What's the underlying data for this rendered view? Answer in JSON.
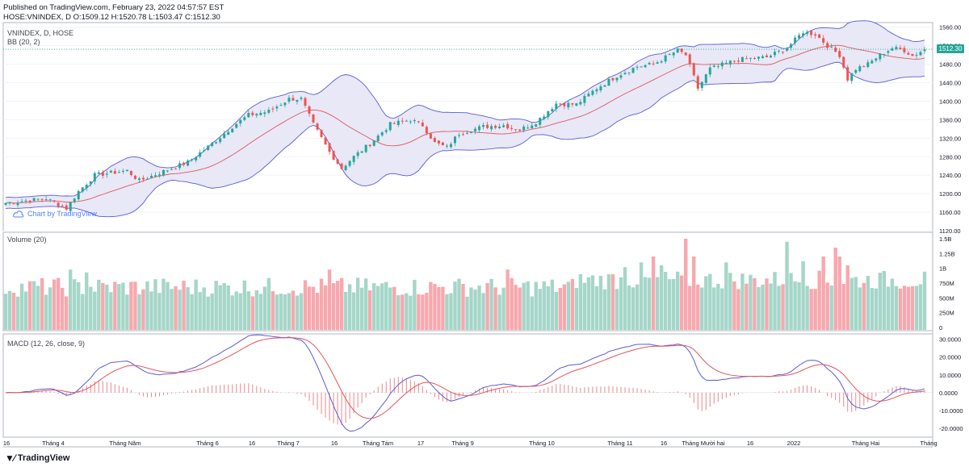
{
  "header": {
    "published": "Published on TradingView.com, February 23, 2022 04:57:57 EST",
    "ohlc": "HOSE:VNINDEX, D O:1509.12 H:1520.78 L:1503.47 C:1512.30"
  },
  "panes": {
    "price_label": "VNINDEX, D, HOSE",
    "bb_label": "BB (20, 2)",
    "volume_label": "Volume (20)",
    "macd_label": "MACD (12, 26, close, 9)",
    "last_price": "1512.30"
  },
  "watermark": "Chart by TradingView",
  "footer": {
    "brand": "TradingView"
  },
  "colors": {
    "up": "#26a69a",
    "down": "#ef5350",
    "vol_up": "#a5d6c8",
    "vol_down": "#f7a8ae",
    "band": "#5b5bd6",
    "band_fill": "#e8e8f7",
    "basis": "#e0565b",
    "macd": "#5b5bd6",
    "signal": "#e0565b"
  },
  "chart_data": [
    {
      "type": "candlestick",
      "title": "VNINDEX, D, HOSE",
      "ylim": [
        1120,
        1570
      ],
      "yticks": [
        "1560.00",
        "1520.00",
        "1480.00",
        "1440.00",
        "1400.00",
        "1360.00",
        "1320.00",
        "1280.00",
        "1240.00",
        "1200.00",
        "1160.00",
        "1120.00"
      ],
      "xticks": [
        "16",
        "Tháng 4",
        "Tháng Năm",
        "Tháng 6",
        "16",
        "Tháng 7",
        "16",
        "Tháng Tám",
        "17",
        "Tháng 9",
        "Tháng 10",
        "Tháng 11",
        "16",
        "Tháng Mười hai",
        "16",
        "2022",
        "Tháng Hai",
        "Tháng"
      ],
      "close_anchors": [
        [
          0,
          1180
        ],
        [
          10,
          1190
        ],
        [
          15,
          1168
        ],
        [
          18,
          1205
        ],
        [
          22,
          1240
        ],
        [
          30,
          1250
        ],
        [
          33,
          1228
        ],
        [
          38,
          1245
        ],
        [
          45,
          1268
        ],
        [
          52,
          1315
        ],
        [
          56,
          1345
        ],
        [
          60,
          1370
        ],
        [
          65,
          1378
        ],
        [
          70,
          1405
        ],
        [
          73,
          1405
        ],
        [
          76,
          1350
        ],
        [
          80,
          1290
        ],
        [
          83,
          1255
        ],
        [
          86,
          1280
        ],
        [
          90,
          1308
        ],
        [
          95,
          1350
        ],
        [
          100,
          1360
        ],
        [
          103,
          1348
        ],
        [
          106,
          1310
        ],
        [
          109,
          1300
        ],
        [
          112,
          1330
        ],
        [
          118,
          1345
        ],
        [
          123,
          1348
        ],
        [
          127,
          1338
        ],
        [
          131,
          1355
        ],
        [
          136,
          1395
        ],
        [
          141,
          1393
        ],
        [
          146,
          1428
        ],
        [
          151,
          1455
        ],
        [
          156,
          1475
        ],
        [
          160,
          1480
        ],
        [
          166,
          1510
        ],
        [
          168,
          1500
        ],
        [
          171,
          1428
        ],
        [
          174,
          1470
        ],
        [
          181,
          1490
        ],
        [
          188,
          1495
        ],
        [
          193,
          1515
        ],
        [
          197,
          1550
        ],
        [
          200,
          1545
        ],
        [
          203,
          1520
        ],
        [
          206,
          1500
        ],
        [
          208,
          1448
        ],
        [
          210,
          1470
        ],
        [
          213,
          1480
        ],
        [
          216,
          1500
        ],
        [
          219,
          1515
        ],
        [
          222,
          1510
        ],
        [
          224,
          1498
        ],
        [
          227,
          1512
        ]
      ],
      "bb_period": 20,
      "bb_mult": 2,
      "last_close": 1512.3
    },
    {
      "type": "bar",
      "title": "Volume (20)",
      "ylim": [
        0,
        1500000000
      ],
      "yticks": [
        "1.5B",
        "1.25B",
        "1B",
        "750M",
        "500M",
        "250M",
        "0"
      ],
      "spikes": [
        [
          16,
          0.98
        ],
        [
          20,
          0.93
        ],
        [
          80,
          0.98
        ],
        [
          124,
          0.98
        ],
        [
          150,
          0.9
        ],
        [
          153,
          1.02
        ],
        [
          157,
          1.1
        ],
        [
          160,
          1.2
        ],
        [
          162,
          1.05
        ],
        [
          168,
          1.5
        ],
        [
          170,
          1.2
        ],
        [
          178,
          1.1
        ],
        [
          193,
          1.45
        ],
        [
          197,
          1.12
        ],
        [
          202,
          1.2
        ],
        [
          205,
          1.35
        ],
        [
          206,
          1.2
        ],
        [
          208,
          1.05
        ]
      ],
      "base_volume": 650000000
    },
    {
      "type": "line",
      "title": "MACD (12, 26, close, 9)",
      "ylim": [
        -25,
        33
      ],
      "yticks": [
        "30.0000",
        "20.0000",
        "10.0000",
        "0.0000",
        "-10.0000",
        "-20.0000"
      ],
      "series": [
        {
          "name": "MACD"
        },
        {
          "name": "Signal"
        },
        {
          "name": "Histogram"
        }
      ]
    }
  ]
}
